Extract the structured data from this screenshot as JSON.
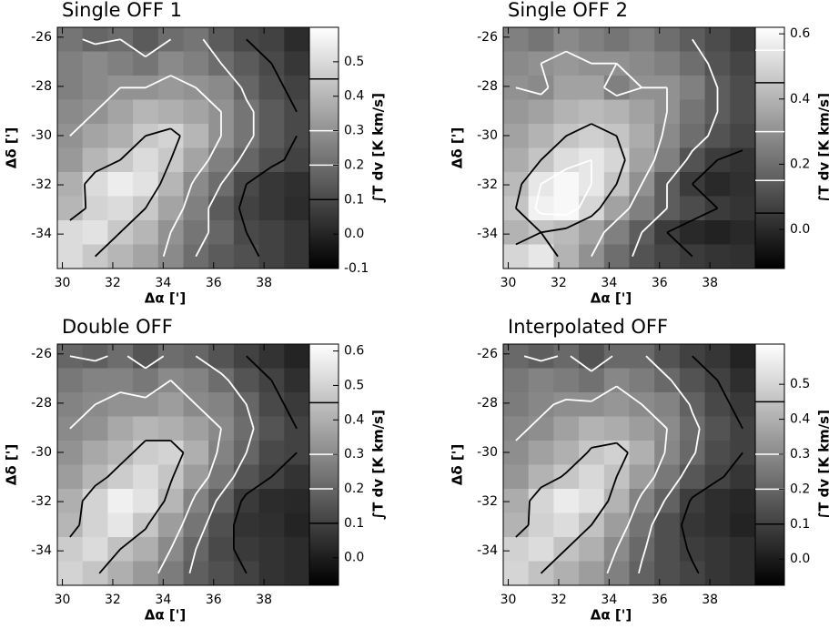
{
  "chart_data": [
    {
      "type": "heatmap",
      "title": "Single OFF 1",
      "xlabel": "Δα [']",
      "ylabel": "Δδ [']",
      "colorbar_label": "∫T dv [K km/s]",
      "x": [
        30.3,
        31.3,
        32.3,
        33.3,
        34.3,
        35.3,
        36.3,
        37.3,
        38.3,
        39.3
      ],
      "y": [
        -26.09,
        -27.07,
        -28.05,
        -29.03,
        -30.01,
        -30.99,
        -31.97,
        -32.95,
        -33.93,
        -34.91
      ],
      "z": [
        [
          0.22,
          0.18,
          0.2,
          0.15,
          0.2,
          0.22,
          0.15,
          0.1,
          0.08,
          0.02
        ],
        [
          0.25,
          0.28,
          0.25,
          0.22,
          0.28,
          0.25,
          0.2,
          0.15,
          0.1,
          0.05
        ],
        [
          0.25,
          0.28,
          0.3,
          0.3,
          0.32,
          0.3,
          0.28,
          0.18,
          0.12,
          0.08
        ],
        [
          0.28,
          0.3,
          0.35,
          0.4,
          0.38,
          0.35,
          0.3,
          0.22,
          0.15,
          0.1
        ],
        [
          0.3,
          0.35,
          0.38,
          0.45,
          0.48,
          0.4,
          0.3,
          0.22,
          0.15,
          0.1
        ],
        [
          0.32,
          0.4,
          0.45,
          0.5,
          0.45,
          0.35,
          0.25,
          0.18,
          0.12,
          0.08
        ],
        [
          0.38,
          0.5,
          0.55,
          0.52,
          0.4,
          0.28,
          0.2,
          0.1,
          0.05,
          0.03
        ],
        [
          0.4,
          0.48,
          0.5,
          0.45,
          0.35,
          0.25,
          0.15,
          0.08,
          0.05,
          0.02
        ],
        [
          0.5,
          0.52,
          0.45,
          0.4,
          0.3,
          0.22,
          0.18,
          0.1,
          0.08,
          0.05
        ],
        [
          0.5,
          0.45,
          0.4,
          0.35,
          0.28,
          0.2,
          0.15,
          0.12,
          0.08,
          0.05
        ]
      ],
      "xlim": [
        29.8,
        39.8
      ],
      "ylim": [
        -35.4,
        -25.6
      ],
      "xticks": [
        30,
        32,
        34,
        36,
        38
      ],
      "yticks": [
        -26,
        -28,
        -30,
        -32,
        -34
      ],
      "clim": [
        -0.1,
        0.6
      ],
      "cticks": [
        -0.1,
        {
          "value": 0,
          "label": "0.0"
        },
        0.1,
        0.2,
        0.3,
        0.4,
        0.5
      ],
      "colormap": [
        "#000000",
        "#ffffff"
      ],
      "contours": [
        {
          "level": 0.1,
          "color": "#000000"
        },
        {
          "level": 0.2,
          "color": "#ffffff"
        },
        {
          "level": 0.3,
          "color": "#ffffff"
        },
        {
          "level": 0.45,
          "color": "#000000"
        }
      ]
    },
    {
      "type": "heatmap",
      "title": "Single OFF 2",
      "xlabel": "Δα [']",
      "ylabel": "Δδ [']",
      "colorbar_label": "∫T dv [K km/s]",
      "x": [
        30.3,
        31.3,
        32.3,
        33.3,
        34.3,
        35.3,
        36.3,
        37.3,
        38.3,
        39.3
      ],
      "y": [
        -26.09,
        -27.07,
        -28.05,
        -29.03,
        -30.01,
        -30.99,
        -31.97,
        -32.95,
        -33.93,
        -34.91
      ],
      "z": [
        [
          0.25,
          0.22,
          0.28,
          0.25,
          0.22,
          0.25,
          0.2,
          0.15,
          0.1,
          0.05
        ],
        [
          0.28,
          0.3,
          0.32,
          0.3,
          0.3,
          0.28,
          0.25,
          0.2,
          0.12,
          0.08
        ],
        [
          0.3,
          0.28,
          0.35,
          0.35,
          0.25,
          0.3,
          0.3,
          0.25,
          0.15,
          0.1
        ],
        [
          0.32,
          0.35,
          0.4,
          0.42,
          0.4,
          0.35,
          0.3,
          0.22,
          0.15,
          0.1
        ],
        [
          0.35,
          0.4,
          0.45,
          0.48,
          0.45,
          0.38,
          0.28,
          0.2,
          0.12,
          0.08
        ],
        [
          0.38,
          0.45,
          0.52,
          0.55,
          0.5,
          0.35,
          0.25,
          0.12,
          0.05,
          0.03
        ],
        [
          0.42,
          0.55,
          0.6,
          0.55,
          0.45,
          0.3,
          0.15,
          0.05,
          0.0,
          0.02
        ],
        [
          0.45,
          0.58,
          0.6,
          0.5,
          0.35,
          0.25,
          0.15,
          0.1,
          0.05,
          0.03
        ],
        [
          0.4,
          0.45,
          0.42,
          0.35,
          0.25,
          0.15,
          0.05,
          0.0,
          -0.02,
          0.0
        ],
        [
          0.5,
          0.55,
          0.4,
          0.3,
          0.2,
          0.12,
          0.08,
          0.05,
          0.03,
          0.02
        ]
      ],
      "xlim": [
        29.8,
        39.8
      ],
      "ylim": [
        -35.4,
        -25.6
      ],
      "xticks": [
        30,
        32,
        34,
        36,
        38
      ],
      "yticks": [
        -26,
        -28,
        -30,
        -32,
        -34
      ],
      "clim": [
        -0.12,
        0.62
      ],
      "cticks": [
        {
          "value": 0,
          "label": "0.0"
        },
        0.2,
        0.4,
        0.6
      ],
      "colormap": [
        "#000000",
        "#ffffff"
      ],
      "contours": [
        {
          "level": 0.05,
          "color": "#000000"
        },
        {
          "level": 0.15,
          "color": "#ffffff"
        },
        {
          "level": 0.3,
          "color": "#ffffff"
        },
        {
          "level": 0.45,
          "color": "#000000"
        },
        {
          "level": 0.55,
          "color": "#ffffff"
        }
      ]
    },
    {
      "type": "heatmap",
      "title": "Double OFF",
      "xlabel": "Δα [']",
      "ylabel": "Δδ [']",
      "colorbar_label": "∫T dv [K km/s]",
      "x": [
        30.3,
        31.3,
        32.3,
        33.3,
        34.3,
        35.3,
        36.3,
        37.3,
        38.3,
        39.3
      ],
      "y": [
        -26.09,
        -27.07,
        -28.05,
        -29.03,
        -30.01,
        -30.99,
        -31.97,
        -32.95,
        -33.93,
        -34.91
      ],
      "z": [
        [
          0.2,
          0.18,
          0.22,
          0.15,
          0.22,
          0.2,
          0.15,
          0.1,
          0.06,
          0.02
        ],
        [
          0.25,
          0.28,
          0.28,
          0.25,
          0.3,
          0.28,
          0.22,
          0.15,
          0.1,
          0.05
        ],
        [
          0.28,
          0.3,
          0.32,
          0.32,
          0.35,
          0.3,
          0.28,
          0.2,
          0.12,
          0.08
        ],
        [
          0.3,
          0.32,
          0.38,
          0.42,
          0.4,
          0.36,
          0.3,
          0.22,
          0.15,
          0.1
        ],
        [
          0.32,
          0.38,
          0.42,
          0.48,
          0.5,
          0.4,
          0.28,
          0.2,
          0.12,
          0.1
        ],
        [
          0.35,
          0.42,
          0.48,
          0.52,
          0.46,
          0.35,
          0.25,
          0.15,
          0.1,
          0.06
        ],
        [
          0.4,
          0.5,
          0.58,
          0.54,
          0.42,
          0.28,
          0.18,
          0.08,
          0.04,
          0.03
        ],
        [
          0.42,
          0.5,
          0.55,
          0.46,
          0.35,
          0.24,
          0.14,
          0.06,
          0.05,
          0.02
        ],
        [
          0.48,
          0.52,
          0.45,
          0.4,
          0.3,
          0.2,
          0.12,
          0.08,
          0.06,
          0.04
        ],
        [
          0.5,
          0.46,
          0.4,
          0.34,
          0.26,
          0.18,
          0.14,
          0.1,
          0.06,
          0.04
        ]
      ],
      "xlim": [
        29.8,
        39.8
      ],
      "ylim": [
        -35.4,
        -25.6
      ],
      "xticks": [
        30,
        32,
        34,
        36,
        38
      ],
      "yticks": [
        -26,
        -28,
        -30,
        -32,
        -34
      ],
      "clim": [
        -0.08,
        0.62
      ],
      "cticks": [
        {
          "value": 0,
          "label": "0.0"
        },
        0.1,
        0.2,
        0.3,
        0.4,
        0.5,
        0.6
      ],
      "colormap": [
        "#000000",
        "#ffffff"
      ],
      "contours": [
        {
          "level": 0.1,
          "color": "#000000"
        },
        {
          "level": 0.2,
          "color": "#ffffff"
        },
        {
          "level": 0.3,
          "color": "#ffffff"
        },
        {
          "level": 0.45,
          "color": "#000000"
        }
      ]
    },
    {
      "type": "heatmap",
      "title": "Interpolated OFF",
      "xlabel": "Δα [']",
      "ylabel": "Δδ [']",
      "colorbar_label": "∫T dv [K km/s]",
      "x": [
        30.3,
        31.3,
        32.3,
        33.3,
        34.3,
        35.3,
        36.3,
        37.3,
        38.3,
        39.3
      ],
      "y": [
        -26.09,
        -27.07,
        -28.05,
        -29.03,
        -30.01,
        -30.99,
        -31.97,
        -32.95,
        -33.93,
        -34.91
      ],
      "z": [
        [
          0.21,
          0.18,
          0.21,
          0.15,
          0.21,
          0.21,
          0.15,
          0.1,
          0.07,
          0.02
        ],
        [
          0.25,
          0.28,
          0.26,
          0.23,
          0.29,
          0.26,
          0.21,
          0.15,
          0.1,
          0.05
        ],
        [
          0.26,
          0.29,
          0.31,
          0.31,
          0.33,
          0.3,
          0.28,
          0.19,
          0.12,
          0.08
        ],
        [
          0.29,
          0.31,
          0.36,
          0.41,
          0.39,
          0.35,
          0.3,
          0.22,
          0.15,
          0.1
        ],
        [
          0.31,
          0.36,
          0.4,
          0.46,
          0.49,
          0.4,
          0.29,
          0.21,
          0.13,
          0.1
        ],
        [
          0.33,
          0.41,
          0.46,
          0.51,
          0.45,
          0.35,
          0.25,
          0.16,
          0.11,
          0.07
        ],
        [
          0.39,
          0.5,
          0.56,
          0.53,
          0.41,
          0.28,
          0.19,
          0.09,
          0.05,
          0.03
        ],
        [
          0.41,
          0.49,
          0.52,
          0.45,
          0.35,
          0.24,
          0.14,
          0.07,
          0.05,
          0.02
        ],
        [
          0.49,
          0.52,
          0.45,
          0.4,
          0.3,
          0.21,
          0.14,
          0.09,
          0.07,
          0.05
        ],
        [
          0.5,
          0.45,
          0.4,
          0.35,
          0.27,
          0.19,
          0.14,
          0.11,
          0.07,
          0.05
        ]
      ],
      "xlim": [
        29.8,
        39.8
      ],
      "ylim": [
        -35.4,
        -25.6
      ],
      "xticks": [
        30,
        32,
        34,
        36,
        38
      ],
      "yticks": [
        -26,
        -28,
        -30,
        -32,
        -34
      ],
      "clim": [
        -0.075,
        0.615
      ],
      "cticks": [
        {
          "value": 0,
          "label": "0.0"
        },
        0.1,
        0.2,
        0.3,
        0.4,
        0.5
      ],
      "colormap": [
        "#000000",
        "#ffffff"
      ],
      "contours": [
        {
          "level": 0.1,
          "color": "#000000"
        },
        {
          "level": 0.2,
          "color": "#ffffff"
        },
        {
          "level": 0.3,
          "color": "#ffffff"
        },
        {
          "level": 0.45,
          "color": "#000000"
        }
      ]
    }
  ]
}
